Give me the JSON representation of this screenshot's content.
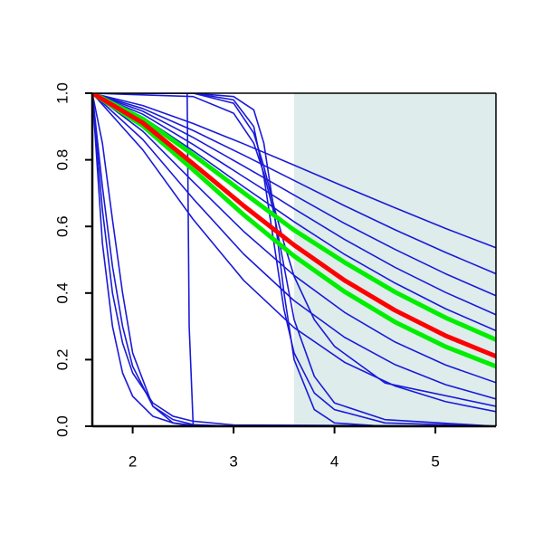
{
  "chart_data": {
    "type": "line",
    "xlim": [
      1.6,
      5.6
    ],
    "ylim": [
      0,
      1
    ],
    "xticks": [
      2,
      3,
      4,
      5
    ],
    "yticks": [
      {
        "value": 0,
        "label": "0.0"
      },
      0.2,
      0.4,
      0.6,
      0.8,
      {
        "value": 1,
        "label": "1.0"
      }
    ],
    "shaded_region": {
      "x": [
        3.6,
        5.6
      ],
      "y": [
        0,
        1
      ],
      "color": "#deecec"
    },
    "series": [
      {
        "color": "#1a1ad8",
        "line_width": 1.6,
        "x": [
          1.6,
          2.1,
          2.6,
          3.1,
          3.6,
          4.1,
          4.6,
          5.1,
          5.6
        ],
        "values": [
          1,
          0.963,
          0.909,
          0.848,
          0.784,
          0.719,
          0.656,
          0.594,
          0.536
        ]
      },
      {
        "color": "#1a1ad8",
        "line_width": 1.6,
        "x": [
          1.6,
          2.1,
          2.6,
          3.1,
          3.6,
          4.1,
          4.6,
          5.1,
          5.6
        ],
        "values": [
          1,
          0.954,
          0.888,
          0.814,
          0.738,
          0.662,
          0.59,
          0.522,
          0.458
        ]
      },
      {
        "color": "#1a1ad8",
        "line_width": 1.6,
        "x": [
          1.6,
          2.1,
          2.6,
          3.1,
          3.6,
          4.1,
          4.6,
          5.1,
          5.6
        ],
        "values": [
          1,
          0.946,
          0.867,
          0.781,
          0.694,
          0.609,
          0.531,
          0.458,
          0.392
        ]
      },
      {
        "color": "#1a1ad8",
        "line_width": 1.6,
        "x": [
          1.6,
          2.1,
          2.6,
          3.1,
          3.6,
          4.1,
          4.6,
          5.1,
          5.6
        ],
        "values": [
          1,
          0.937,
          0.846,
          0.749,
          0.653,
          0.561,
          0.477,
          0.402,
          0.335
        ]
      },
      {
        "color": "#1a1ad8",
        "line_width": 1.6,
        "x": [
          1.6,
          2.1,
          2.6,
          3.1,
          3.6,
          4.1,
          4.6,
          5.1,
          5.6
        ],
        "values": [
          1,
          0.928,
          0.827,
          0.719,
          0.614,
          0.516,
          0.43,
          0.353,
          0.287
        ]
      },
      {
        "color": "#1a1ad8",
        "line_width": 1.6,
        "x": [
          1.6,
          2.1,
          2.6,
          3.1,
          3.6,
          4.1,
          4.6,
          5.1,
          5.6
        ],
        "values": [
          1,
          0.886,
          0.734,
          0.585,
          0.453,
          0.342,
          0.253,
          0.184,
          0.131
        ]
      },
      {
        "color": "#1a1ad8",
        "line_width": 1.6,
        "x": [
          1.6,
          2.1,
          2.6,
          3.1,
          3.6,
          4.1,
          4.6,
          5.1,
          5.6
        ],
        "values": [
          1,
          0.861,
          0.683,
          0.517,
          0.377,
          0.267,
          0.185,
          0.125,
          0.082
        ]
      },
      {
        "color": "#1a1ad8",
        "line_width": 1.6,
        "x": [
          1.6,
          2.1,
          2.6,
          3.1,
          3.6,
          4.1,
          4.6,
          5.1,
          5.6
        ],
        "values": [
          1,
          0.83,
          0.621,
          0.438,
          0.296,
          0.192,
          0.121,
          0.074,
          0.044
        ]
      },
      {
        "color": "#1a1ad8",
        "line_width": 1.6,
        "x": [
          1.6,
          1.7,
          1.8,
          1.9,
          2.0,
          2.2,
          2.4,
          2.6,
          3.0,
          5.6
        ],
        "values": [
          1,
          0.72,
          0.48,
          0.3,
          0.18,
          0.06,
          0.02,
          0.005,
          0,
          0
        ]
      },
      {
        "color": "#1a1ad8",
        "line_width": 1.6,
        "x": [
          1.6,
          1.7,
          1.8,
          1.9,
          2.0,
          2.2,
          2.4,
          2.6,
          3.0,
          5.6
        ],
        "values": [
          1,
          0.85,
          0.62,
          0.4,
          0.22,
          0.06,
          0.01,
          0,
          0,
          0
        ]
      },
      {
        "color": "#1a1ad8",
        "line_width": 1.6,
        "x": [
          1.6,
          1.7,
          1.8,
          1.9,
          2.0,
          2.2,
          2.4,
          2.6,
          3.0,
          5.6
        ],
        "values": [
          1,
          0.65,
          0.4,
          0.25,
          0.16,
          0.07,
          0.03,
          0.015,
          0.004,
          0
        ]
      },
      {
        "color": "#1a1ad8",
        "line_width": 1.6,
        "x": [
          1.6,
          1.7,
          1.8,
          1.9,
          2.0,
          2.2,
          2.4,
          2.6,
          3.0,
          5.6
        ],
        "values": [
          1,
          0.55,
          0.3,
          0.16,
          0.09,
          0.03,
          0.01,
          0.003,
          0,
          0
        ]
      },
      {
        "color": "#1a1ad8",
        "line_width": 1.6,
        "x": [
          1.6,
          2.54,
          2.56,
          2.6,
          5.6
        ],
        "values": [
          1,
          1,
          0.3,
          0,
          0
        ]
      },
      {
        "color": "#1a1ad8",
        "line_width": 1.6,
        "x": [
          1.6,
          2.6,
          3.0,
          3.2,
          3.3,
          3.4,
          3.5,
          3.6,
          3.8,
          4.0,
          4.5,
          5.6
        ],
        "values": [
          1,
          1,
          0.99,
          0.95,
          0.85,
          0.65,
          0.4,
          0.2,
          0.05,
          0.01,
          0,
          0
        ]
      },
      {
        "color": "#1a1ad8",
        "line_width": 1.6,
        "x": [
          1.6,
          2.6,
          3.0,
          3.2,
          3.3,
          3.4,
          3.5,
          3.6,
          3.8,
          4.0,
          4.5,
          5.6
        ],
        "values": [
          1,
          1,
          0.98,
          0.9,
          0.75,
          0.55,
          0.35,
          0.22,
          0.1,
          0.05,
          0.01,
          0
        ]
      },
      {
        "color": "#1a1ad8",
        "line_width": 1.6,
        "x": [
          1.6,
          2.6,
          3.0,
          3.2,
          3.3,
          3.4,
          3.5,
          3.6,
          3.8,
          4.0,
          4.5,
          5.6
        ],
        "values": [
          1,
          1,
          0.97,
          0.88,
          0.78,
          0.66,
          0.55,
          0.45,
          0.32,
          0.24,
          0.13,
          0.06
        ]
      },
      {
        "color": "#1a1ad8",
        "line_width": 1.6,
        "x": [
          1.6,
          2.6,
          3.0,
          3.2,
          3.3,
          3.4,
          3.5,
          3.6,
          3.8,
          4.0,
          4.5,
          5.6
        ],
        "values": [
          1,
          0.99,
          0.94,
          0.85,
          0.76,
          0.64,
          0.48,
          0.32,
          0.15,
          0.07,
          0.02,
          0
        ]
      },
      {
        "color": "#00ee00",
        "line_width": 5,
        "x": [
          1.6,
          2.1,
          2.6,
          3.1,
          3.6,
          4.1,
          4.6,
          5.1,
          5.6
        ],
        "values": [
          1,
          0.923,
          0.815,
          0.701,
          0.589,
          0.492,
          0.403,
          0.326,
          0.26
        ]
      },
      {
        "color": "#00ee00",
        "line_width": 5,
        "x": [
          1.6,
          2.1,
          2.6,
          3.1,
          3.6,
          4.1,
          4.6,
          5.1,
          5.6
        ],
        "values": [
          1,
          0.902,
          0.77,
          0.635,
          0.511,
          0.404,
          0.313,
          0.239,
          0.18
        ]
      },
      {
        "color": "#ff0000",
        "line_width": 5,
        "x": [
          1.6,
          2.1,
          2.6,
          3.1,
          3.6,
          4.1,
          4.6,
          5.1,
          5.6
        ],
        "values": [
          1,
          0.911,
          0.788,
          0.662,
          0.544,
          0.438,
          0.348,
          0.272,
          0.21
        ]
      }
    ]
  }
}
